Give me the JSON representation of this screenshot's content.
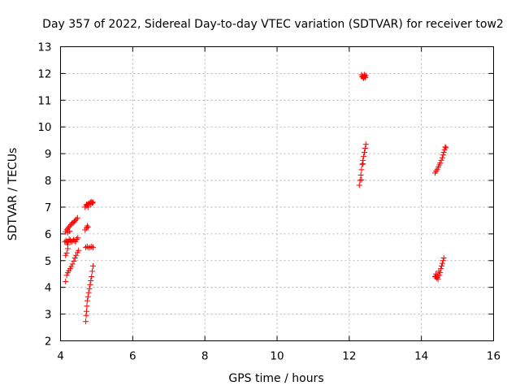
{
  "chart_data": {
    "type": "scatter",
    "title": "Day 357 of 2022, Sidereal Day-to-day VTEC variation (SDTVAR) for receiver tow2",
    "xlabel": "GPS time / hours",
    "ylabel": "SDTVAR / TECUs",
    "xlim": [
      4,
      16
    ],
    "ylim": [
      2,
      13
    ],
    "xticks": [
      "4",
      "6",
      "8",
      "10",
      "12",
      "14",
      "16"
    ],
    "yticks": [
      "2",
      "3",
      "4",
      "5",
      "6",
      "7",
      "8",
      "9",
      "10",
      "11",
      "12",
      "13"
    ],
    "grid": true,
    "marker": "plus",
    "color": "#ff0000",
    "series": [
      {
        "name": "SDTVAR",
        "points": [
          [
            4.14,
            4.22
          ],
          [
            4.17,
            4.45
          ],
          [
            4.2,
            4.55
          ],
          [
            4.23,
            4.62
          ],
          [
            4.27,
            4.7
          ],
          [
            4.3,
            4.78
          ],
          [
            4.33,
            4.87
          ],
          [
            4.37,
            4.98
          ],
          [
            4.4,
            5.1
          ],
          [
            4.43,
            5.2
          ],
          [
            4.47,
            5.3
          ],
          [
            4.5,
            5.38
          ],
          [
            4.14,
            5.2
          ],
          [
            4.17,
            5.28
          ],
          [
            4.2,
            5.45
          ],
          [
            4.12,
            5.7
          ],
          [
            4.15,
            5.75
          ],
          [
            4.18,
            5.68
          ],
          [
            4.21,
            5.72
          ],
          [
            4.24,
            5.8
          ],
          [
            4.27,
            5.76
          ],
          [
            4.3,
            5.7
          ],
          [
            4.33,
            5.73
          ],
          [
            4.36,
            5.78
          ],
          [
            4.39,
            5.74
          ],
          [
            4.42,
            5.7
          ],
          [
            4.45,
            5.8
          ],
          [
            4.48,
            5.85
          ],
          [
            4.2,
            5.6
          ],
          [
            4.14,
            6.08
          ],
          [
            4.17,
            6.15
          ],
          [
            4.2,
            6.2
          ],
          [
            4.23,
            6.25
          ],
          [
            4.26,
            6.3
          ],
          [
            4.29,
            6.35
          ],
          [
            4.32,
            6.4
          ],
          [
            4.35,
            6.42
          ],
          [
            4.38,
            6.46
          ],
          [
            4.41,
            6.5
          ],
          [
            4.44,
            6.55
          ],
          [
            4.47,
            6.6
          ],
          [
            4.2,
            6.05
          ],
          [
            4.25,
            6.1
          ],
          [
            4.7,
            2.72
          ],
          [
            4.71,
            2.95
          ],
          [
            4.72,
            3.1
          ],
          [
            4.73,
            3.3
          ],
          [
            4.74,
            3.5
          ],
          [
            4.76,
            3.65
          ],
          [
            4.78,
            3.8
          ],
          [
            4.8,
            3.95
          ],
          [
            4.82,
            4.1
          ],
          [
            4.84,
            4.25
          ],
          [
            4.86,
            4.4
          ],
          [
            4.88,
            4.6
          ],
          [
            4.9,
            4.8
          ],
          [
            4.7,
            5.5
          ],
          [
            4.74,
            5.52
          ],
          [
            4.78,
            5.48
          ],
          [
            4.82,
            5.5
          ],
          [
            4.86,
            5.52
          ],
          [
            4.9,
            5.5
          ],
          [
            4.68,
            6.15
          ],
          [
            4.72,
            6.22
          ],
          [
            4.76,
            6.25
          ],
          [
            4.74,
            6.3
          ],
          [
            4.68,
            7.0
          ],
          [
            4.71,
            7.05
          ],
          [
            4.74,
            7.08
          ],
          [
            4.77,
            7.12
          ],
          [
            4.8,
            7.15
          ],
          [
            4.83,
            7.18
          ],
          [
            4.86,
            7.2
          ],
          [
            4.88,
            7.15
          ],
          [
            4.9,
            7.18
          ],
          [
            4.72,
            7.1
          ],
          [
            4.76,
            7.0
          ],
          [
            4.84,
            7.1
          ],
          [
            12.28,
            7.82
          ],
          [
            12.3,
            8.0
          ],
          [
            12.32,
            8.2
          ],
          [
            12.34,
            8.4
          ],
          [
            12.36,
            8.6
          ],
          [
            12.38,
            8.75
          ],
          [
            12.4,
            8.9
          ],
          [
            12.42,
            9.05
          ],
          [
            12.44,
            9.2
          ],
          [
            12.46,
            9.35
          ],
          [
            12.38,
            8.62
          ],
          [
            12.34,
            8.02
          ],
          [
            12.34,
            11.95
          ],
          [
            12.37,
            11.9
          ],
          [
            12.4,
            11.85
          ],
          [
            12.43,
            11.88
          ],
          [
            12.46,
            11.92
          ],
          [
            12.39,
            11.82
          ],
          [
            12.42,
            11.95
          ],
          [
            12.36,
            11.87
          ],
          [
            12.45,
            11.84
          ],
          [
            12.41,
            11.9
          ],
          [
            14.38,
            8.28
          ],
          [
            14.41,
            8.35
          ],
          [
            14.44,
            8.42
          ],
          [
            14.47,
            8.5
          ],
          [
            14.5,
            8.58
          ],
          [
            14.52,
            8.65
          ],
          [
            14.55,
            8.75
          ],
          [
            14.58,
            8.85
          ],
          [
            14.6,
            8.95
          ],
          [
            14.62,
            9.05
          ],
          [
            14.64,
            9.15
          ],
          [
            14.66,
            9.25
          ],
          [
            14.68,
            9.22
          ],
          [
            14.38,
            4.4
          ],
          [
            14.4,
            4.5
          ],
          [
            14.42,
            4.35
          ],
          [
            14.44,
            4.45
          ],
          [
            14.46,
            4.3
          ],
          [
            14.48,
            4.6
          ],
          [
            14.5,
            4.45
          ],
          [
            14.52,
            4.55
          ],
          [
            14.54,
            4.7
          ],
          [
            14.56,
            4.8
          ],
          [
            14.58,
            4.9
          ],
          [
            14.6,
            5.0
          ],
          [
            14.62,
            5.1
          ],
          [
            14.4,
            4.42
          ],
          [
            14.45,
            4.38
          ]
        ]
      }
    ]
  }
}
